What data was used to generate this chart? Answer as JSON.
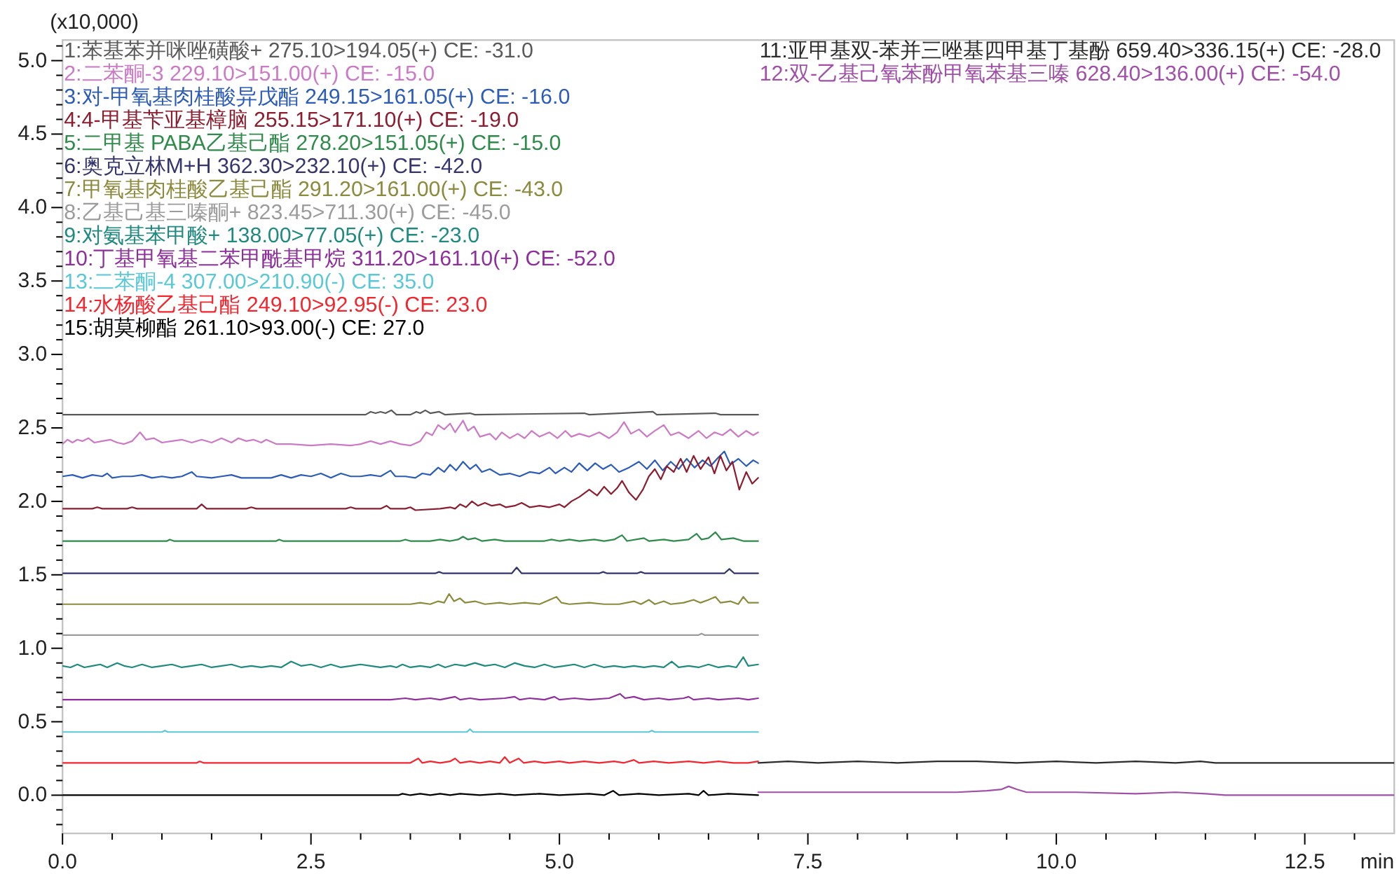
{
  "chart_data": {
    "type": "line",
    "ylabel": "(x10,000)",
    "xlabel": "min",
    "legend": "top left",
    "xlim": [
      0,
      13.4
    ],
    "ylim": [
      -0.26,
      5.14
    ],
    "xticks": [
      {
        "value": 0,
        "label": "0.0"
      },
      {
        "value": 0.5,
        "label": null
      },
      {
        "value": 1,
        "label": null
      },
      {
        "value": 1.5,
        "label": null
      },
      {
        "value": 2,
        "label": null
      },
      {
        "value": 2.5,
        "label": "2.5"
      },
      {
        "value": 3,
        "label": null
      },
      {
        "value": 3.5,
        "label": null
      },
      {
        "value": 4,
        "label": null
      },
      {
        "value": 4.5,
        "label": null
      },
      {
        "value": 5,
        "label": "5.0"
      },
      {
        "value": 5.5,
        "label": null
      },
      {
        "value": 6,
        "label": null
      },
      {
        "value": 6.5,
        "label": null
      },
      {
        "value": 7,
        "label": null
      },
      {
        "value": 7.5,
        "label": "7.5"
      },
      {
        "value": 8,
        "label": null
      },
      {
        "value": 8.5,
        "label": null
      },
      {
        "value": 9,
        "label": null
      },
      {
        "value": 9.5,
        "label": null
      },
      {
        "value": 10,
        "label": "10.0"
      },
      {
        "value": 10.5,
        "label": null
      },
      {
        "value": 11,
        "label": null
      },
      {
        "value": 11.5,
        "label": null
      },
      {
        "value": 12,
        "label": null
      },
      {
        "value": 12.5,
        "label": "12.5"
      },
      {
        "value": 13,
        "label": null
      }
    ],
    "yticks": [
      {
        "value": -0.2,
        "label": null
      },
      {
        "value": -0.1,
        "label": null
      },
      {
        "value": 0,
        "label": "0.0"
      },
      {
        "value": 0.1,
        "label": null
      },
      {
        "value": 0.2,
        "label": null
      },
      {
        "value": 0.3,
        "label": null
      },
      {
        "value": 0.4,
        "label": null
      },
      {
        "value": 0.5,
        "label": "0.5"
      },
      {
        "value": 0.6,
        "label": null
      },
      {
        "value": 0.7,
        "label": null
      },
      {
        "value": 0.8,
        "label": null
      },
      {
        "value": 0.9,
        "label": null
      },
      {
        "value": 1,
        "label": "1.0"
      },
      {
        "value": 1.1,
        "label": null
      },
      {
        "value": 1.2,
        "label": null
      },
      {
        "value": 1.3,
        "label": null
      },
      {
        "value": 1.4,
        "label": null
      },
      {
        "value": 1.5,
        "label": "1.5"
      },
      {
        "value": 1.6,
        "label": null
      },
      {
        "value": 1.7,
        "label": null
      },
      {
        "value": 1.8,
        "label": null
      },
      {
        "value": 1.9,
        "label": null
      },
      {
        "value": 2,
        "label": "2.0"
      },
      {
        "value": 2.1,
        "label": null
      },
      {
        "value": 2.2,
        "label": null
      },
      {
        "value": 2.3,
        "label": null
      },
      {
        "value": 2.4,
        "label": null
      },
      {
        "value": 2.5,
        "label": "2.5"
      },
      {
        "value": 2.6,
        "label": null
      },
      {
        "value": 2.7,
        "label": null
      },
      {
        "value": 2.8,
        "label": null
      },
      {
        "value": 2.9,
        "label": null
      },
      {
        "value": 3,
        "label": "3.0"
      },
      {
        "value": 3.1,
        "label": null
      },
      {
        "value": 3.2,
        "label": null
      },
      {
        "value": 3.3,
        "label": null
      },
      {
        "value": 3.4,
        "label": null
      },
      {
        "value": 3.5,
        "label": "3.5"
      },
      {
        "value": 3.6,
        "label": null
      },
      {
        "value": 3.7,
        "label": null
      },
      {
        "value": 3.8,
        "label": null
      },
      {
        "value": 3.9,
        "label": null
      },
      {
        "value": 4,
        "label": "4.0"
      },
      {
        "value": 4.1,
        "label": null
      },
      {
        "value": 4.2,
        "label": null
      },
      {
        "value": 4.3,
        "label": null
      },
      {
        "value": 4.4,
        "label": null
      },
      {
        "value": 4.5,
        "label": "4.5"
      },
      {
        "value": 4.6,
        "label": null
      },
      {
        "value": 4.7,
        "label": null
      },
      {
        "value": 4.8,
        "label": null
      },
      {
        "value": 4.9,
        "label": null
      },
      {
        "value": 5,
        "label": "5.0"
      },
      {
        "value": 5.1,
        "label": null
      }
    ],
    "series": [
      {
        "name": "1:苯基苯并咪唑磺酸+ 275.10>194.05(+) CE: -31.0",
        "color": "#5a5a5a",
        "x": [
          0,
          3.05,
          3.1,
          3.15,
          3.2,
          3.25,
          3.31,
          3.36,
          3.5,
          3.56,
          3.6,
          3.65,
          3.7,
          3.79,
          3.85,
          4.1,
          4.15,
          5.25,
          5.3,
          5.94,
          5.98,
          6.57,
          6.62,
          7.0
        ],
        "values": [
          2.59,
          2.59,
          2.61,
          2.6,
          2.61,
          2.6,
          2.62,
          2.59,
          2.59,
          2.61,
          2.6,
          2.62,
          2.6,
          2.61,
          2.59,
          2.6,
          2.59,
          2.6,
          2.59,
          2.61,
          2.59,
          2.6,
          2.59,
          2.59
        ]
      },
      {
        "name": "2:二苯酮-3 229.10>151.00(+) CE: -15.0",
        "color": "#cc7ac6",
        "x": [
          0,
          0.05,
          0.1,
          0.15,
          0.2,
          0.26,
          0.32,
          0.4,
          0.48,
          0.55,
          0.62,
          0.7,
          0.78,
          0.84,
          0.92,
          1.0,
          1.1,
          1.2,
          1.3,
          1.4,
          1.5,
          1.6,
          1.7,
          1.77,
          1.85,
          1.92,
          2.0,
          2.05,
          2.15,
          2.3,
          2.5,
          2.7,
          2.9,
          3.0,
          3.1,
          3.2,
          3.3,
          3.4,
          3.5,
          3.6,
          3.66,
          3.72,
          3.78,
          3.84,
          3.9,
          3.95,
          4.03,
          4.08,
          4.14,
          4.2,
          4.3,
          4.36,
          4.42,
          4.5,
          4.58,
          4.65,
          4.72,
          4.8,
          4.9,
          4.98,
          5.06,
          5.12,
          5.2,
          5.3,
          5.4,
          5.5,
          5.58,
          5.65,
          5.72,
          5.8,
          5.88,
          5.96,
          6.05,
          6.12,
          6.2,
          6.3,
          6.4,
          6.48,
          6.56,
          6.64,
          6.72,
          6.8,
          6.88,
          6.95,
          7.0
        ],
        "values": [
          2.39,
          2.42,
          2.4,
          2.42,
          2.41,
          2.43,
          2.4,
          2.41,
          2.42,
          2.4,
          2.39,
          2.41,
          2.47,
          2.42,
          2.43,
          2.4,
          2.41,
          2.42,
          2.4,
          2.42,
          2.4,
          2.43,
          2.4,
          2.43,
          2.41,
          2.42,
          2.4,
          2.42,
          2.39,
          2.39,
          2.38,
          2.39,
          2.38,
          2.39,
          2.41,
          2.39,
          2.41,
          2.39,
          2.38,
          2.41,
          2.47,
          2.45,
          2.52,
          2.49,
          2.53,
          2.47,
          2.55,
          2.48,
          2.51,
          2.44,
          2.46,
          2.42,
          2.47,
          2.43,
          2.46,
          2.43,
          2.48,
          2.44,
          2.47,
          2.43,
          2.48,
          2.44,
          2.46,
          2.44,
          2.47,
          2.43,
          2.47,
          2.54,
          2.46,
          2.49,
          2.44,
          2.48,
          2.52,
          2.45,
          2.47,
          2.43,
          2.48,
          2.43,
          2.47,
          2.45,
          2.49,
          2.44,
          2.48,
          2.45,
          2.47
        ]
      },
      {
        "name": "3:对-甲氧基肉桂酸异戊酯 249.15>161.05(+) CE: -16.0",
        "color": "#2b5cb8",
        "x": [
          0,
          0.1,
          0.2,
          0.3,
          0.4,
          0.45,
          0.5,
          0.6,
          0.7,
          0.8,
          0.9,
          1.0,
          1.1,
          1.2,
          1.3,
          1.35,
          1.5,
          1.6,
          1.7,
          1.8,
          2.0,
          2.1,
          2.2,
          2.3,
          2.4,
          2.5,
          2.6,
          2.7,
          2.8,
          2.9,
          3.0,
          3.1,
          3.2,
          3.3,
          3.35,
          3.45,
          3.55,
          3.62,
          3.7,
          3.78,
          3.84,
          3.9,
          3.96,
          4.03,
          4.1,
          4.16,
          4.22,
          4.3,
          4.4,
          4.5,
          4.6,
          4.7,
          4.8,
          4.9,
          4.96,
          5.05,
          5.12,
          5.2,
          5.28,
          5.36,
          5.44,
          5.52,
          5.6,
          5.7,
          5.8,
          5.88,
          5.96,
          6.04,
          6.12,
          6.2,
          6.28,
          6.36,
          6.44,
          6.52,
          6.6,
          6.66,
          6.72,
          6.8,
          6.88,
          6.95,
          7.0
        ],
        "values": [
          2.17,
          2.18,
          2.16,
          2.18,
          2.17,
          2.19,
          2.16,
          2.17,
          2.17,
          2.18,
          2.16,
          2.17,
          2.16,
          2.17,
          2.2,
          2.17,
          2.16,
          2.17,
          2.18,
          2.16,
          2.16,
          2.16,
          2.18,
          2.16,
          2.18,
          2.17,
          2.19,
          2.16,
          2.19,
          2.17,
          2.17,
          2.18,
          2.17,
          2.21,
          2.17,
          2.17,
          2.16,
          2.19,
          2.18,
          2.23,
          2.2,
          2.25,
          2.21,
          2.27,
          2.22,
          2.25,
          2.2,
          2.22,
          2.18,
          2.19,
          2.17,
          2.2,
          2.19,
          2.23,
          2.19,
          2.23,
          2.2,
          2.26,
          2.21,
          2.26,
          2.22,
          2.25,
          2.2,
          2.23,
          2.27,
          2.22,
          2.28,
          2.21,
          2.27,
          2.22,
          2.29,
          2.23,
          2.28,
          2.24,
          2.3,
          2.34,
          2.25,
          2.29,
          2.24,
          2.28,
          2.26
        ]
      },
      {
        "name": "4:4-甲基苄亚基樟脑 255.15>171.10(+) CE: -19.0",
        "color": "#8c1d2e",
        "x": [
          0,
          0.3,
          0.35,
          0.4,
          0.65,
          0.7,
          0.75,
          1.35,
          1.4,
          1.45,
          1.85,
          1.9,
          1.95,
          2.85,
          2.9,
          2.95,
          3.2,
          3.26,
          3.3,
          3.45,
          3.5,
          3.55,
          3.8,
          3.9,
          3.95,
          4.0,
          4.06,
          4.12,
          4.18,
          4.25,
          4.32,
          4.4,
          4.46,
          4.55,
          4.62,
          4.7,
          4.8,
          4.9,
          5.0,
          5.05,
          5.12,
          5.2,
          5.3,
          5.38,
          5.45,
          5.52,
          5.58,
          5.63,
          5.7,
          5.77,
          5.84,
          5.9,
          5.96,
          6.02,
          6.08,
          6.15,
          6.22,
          6.28,
          6.35,
          6.42,
          6.5,
          6.56,
          6.62,
          6.68,
          6.74,
          6.81,
          6.88,
          6.94,
          7.0
        ],
        "values": [
          1.95,
          1.95,
          1.96,
          1.95,
          1.95,
          1.96,
          1.95,
          1.95,
          1.98,
          1.95,
          1.95,
          1.96,
          1.95,
          1.95,
          1.96,
          1.95,
          1.95,
          1.97,
          1.95,
          1.95,
          1.96,
          1.94,
          1.95,
          1.96,
          1.95,
          1.98,
          1.96,
          2.0,
          1.97,
          1.99,
          1.97,
          1.98,
          1.96,
          1.97,
          1.99,
          1.96,
          1.97,
          1.96,
          1.98,
          1.96,
          2.0,
          2.03,
          2.08,
          2.04,
          2.1,
          2.05,
          2.09,
          2.14,
          2.06,
          2.01,
          2.08,
          2.17,
          2.22,
          2.15,
          2.24,
          2.2,
          2.29,
          2.2,
          2.31,
          2.22,
          2.3,
          2.19,
          2.31,
          2.21,
          2.27,
          2.08,
          2.2,
          2.12,
          2.16
        ]
      },
      {
        "name": "5:二甲基 PABA乙基己酯 278.20>151.05(+) CE: -15.0",
        "color": "#2e8b4a",
        "x": [
          0,
          1.05,
          1.08,
          1.12,
          2.15,
          2.18,
          2.22,
          3.4,
          3.45,
          3.5,
          3.7,
          3.8,
          3.9,
          3.98,
          4.03,
          4.08,
          4.15,
          4.22,
          4.35,
          4.45,
          4.85,
          4.92,
          5.0,
          5.1,
          5.2,
          5.35,
          5.45,
          5.55,
          5.63,
          5.68,
          5.85,
          5.9,
          6.05,
          6.15,
          6.3,
          6.38,
          6.43,
          6.5,
          6.57,
          6.63,
          6.75,
          6.85,
          7.0
        ],
        "values": [
          1.73,
          1.73,
          1.74,
          1.73,
          1.73,
          1.74,
          1.73,
          1.73,
          1.74,
          1.73,
          1.73,
          1.74,
          1.73,
          1.74,
          1.76,
          1.74,
          1.75,
          1.73,
          1.74,
          1.73,
          1.73,
          1.74,
          1.73,
          1.74,
          1.73,
          1.74,
          1.73,
          1.74,
          1.77,
          1.73,
          1.75,
          1.73,
          1.74,
          1.73,
          1.74,
          1.78,
          1.74,
          1.75,
          1.79,
          1.74,
          1.75,
          1.73,
          1.73
        ]
      },
      {
        "name": "6:奥克立林M+H 362.30>232.10(+) CE: -42.0",
        "color": "#35356e",
        "x": [
          0,
          3.75,
          3.79,
          3.83,
          4.52,
          4.57,
          4.62,
          5.4,
          5.44,
          5.48,
          5.78,
          5.82,
          5.86,
          6.66,
          6.71,
          6.76,
          7.0
        ],
        "values": [
          1.51,
          1.51,
          1.52,
          1.51,
          1.51,
          1.55,
          1.51,
          1.51,
          1.52,
          1.51,
          1.51,
          1.52,
          1.51,
          1.51,
          1.54,
          1.51,
          1.51
        ]
      },
      {
        "name": "7:甲氧基肉桂酸乙基己酯 291.20>161.00(+) CE: -43.0",
        "color": "#8c8a3c",
        "x": [
          0,
          3.5,
          3.6,
          3.7,
          3.78,
          3.84,
          3.89,
          3.94,
          4.0,
          4.05,
          4.15,
          4.25,
          4.4,
          4.5,
          4.65,
          4.8,
          4.97,
          5.02,
          5.1,
          5.3,
          5.45,
          5.6,
          5.75,
          5.82,
          5.9,
          5.96,
          6.05,
          6.12,
          6.25,
          6.35,
          6.42,
          6.5,
          6.57,
          6.62,
          6.72,
          6.8,
          6.85,
          6.9,
          7.0
        ],
        "values": [
          1.3,
          1.3,
          1.31,
          1.3,
          1.32,
          1.31,
          1.37,
          1.32,
          1.34,
          1.31,
          1.32,
          1.3,
          1.31,
          1.3,
          1.31,
          1.3,
          1.35,
          1.31,
          1.3,
          1.31,
          1.3,
          1.3,
          1.32,
          1.3,
          1.33,
          1.3,
          1.32,
          1.3,
          1.31,
          1.33,
          1.31,
          1.33,
          1.35,
          1.31,
          1.32,
          1.3,
          1.35,
          1.31,
          1.31
        ]
      },
      {
        "name": "8:乙基己基三嗪酮+ 823.45>711.30(+) CE: -45.0",
        "color": "#9c9c9c",
        "x": [
          0,
          6.4,
          6.43,
          6.46,
          7.0
        ],
        "values": [
          1.09,
          1.09,
          1.1,
          1.09,
          1.09
        ]
      },
      {
        "name": "9:对氨基苯甲酸+ 138.00>77.05(+) CE: -23.0",
        "color": "#1f8a80",
        "x": [
          0,
          0.08,
          0.15,
          0.22,
          0.3,
          0.38,
          0.45,
          0.55,
          0.62,
          0.7,
          0.8,
          0.9,
          1.0,
          1.1,
          1.2,
          1.3,
          1.4,
          1.5,
          1.6,
          1.7,
          1.8,
          1.9,
          2.0,
          2.1,
          2.2,
          2.3,
          2.4,
          2.5,
          2.6,
          2.7,
          2.8,
          2.9,
          3.0,
          3.1,
          3.2,
          3.3,
          3.36,
          3.42,
          3.5,
          3.6,
          3.7,
          3.78,
          3.85,
          3.95,
          4.05,
          4.15,
          4.25,
          4.35,
          4.45,
          4.55,
          4.65,
          4.75,
          4.85,
          4.95,
          5.05,
          5.15,
          5.25,
          5.35,
          5.45,
          5.55,
          5.65,
          5.75,
          5.85,
          5.95,
          6.05,
          6.13,
          6.2,
          6.3,
          6.4,
          6.5,
          6.6,
          6.7,
          6.78,
          6.85,
          6.9,
          7.0
        ],
        "values": [
          0.88,
          0.87,
          0.89,
          0.87,
          0.88,
          0.89,
          0.87,
          0.9,
          0.88,
          0.87,
          0.89,
          0.87,
          0.88,
          0.89,
          0.87,
          0.88,
          0.89,
          0.87,
          0.88,
          0.89,
          0.87,
          0.88,
          0.87,
          0.88,
          0.87,
          0.91,
          0.88,
          0.89,
          0.87,
          0.89,
          0.87,
          0.88,
          0.89,
          0.88,
          0.87,
          0.88,
          0.87,
          0.89,
          0.87,
          0.88,
          0.87,
          0.89,
          0.87,
          0.89,
          0.88,
          0.9,
          0.88,
          0.89,
          0.87,
          0.9,
          0.88,
          0.87,
          0.89,
          0.87,
          0.88,
          0.89,
          0.87,
          0.89,
          0.87,
          0.88,
          0.87,
          0.88,
          0.87,
          0.88,
          0.87,
          0.91,
          0.87,
          0.88,
          0.87,
          0.89,
          0.87,
          0.88,
          0.87,
          0.94,
          0.88,
          0.89
        ]
      },
      {
        "name": "10:丁基甲氧基二苯甲酰基甲烷 311.20>161.10(+) CE: -52.0",
        "color": "#8e2f9c",
        "x": [
          0,
          3.3,
          3.45,
          3.55,
          3.7,
          3.8,
          3.95,
          4.0,
          4.1,
          4.2,
          4.45,
          4.55,
          4.6,
          4.7,
          4.85,
          4.95,
          5.0,
          5.15,
          5.3,
          5.5,
          5.61,
          5.66,
          5.75,
          5.85,
          6.0,
          6.1,
          6.25,
          6.3,
          6.35,
          6.5,
          6.6,
          6.8,
          6.9,
          7.0
        ],
        "values": [
          0.65,
          0.65,
          0.66,
          0.65,
          0.66,
          0.65,
          0.67,
          0.65,
          0.66,
          0.65,
          0.66,
          0.67,
          0.65,
          0.66,
          0.65,
          0.67,
          0.65,
          0.66,
          0.65,
          0.66,
          0.69,
          0.66,
          0.67,
          0.65,
          0.66,
          0.65,
          0.66,
          0.67,
          0.65,
          0.66,
          0.65,
          0.66,
          0.65,
          0.66
        ]
      },
      {
        "name": "11:亚甲基双-苯并三唑基四甲基丁基酚 659.40>336.15(+) CE: -28.0",
        "color": "#2c2c2c",
        "x": [
          7.0,
          7.3,
          7.6,
          8.0,
          8.4,
          8.8,
          9.2,
          9.6,
          10.0,
          10.4,
          10.8,
          11.2,
          11.45,
          11.6,
          13.4
        ],
        "values": [
          0.22,
          0.23,
          0.22,
          0.23,
          0.22,
          0.23,
          0.23,
          0.22,
          0.23,
          0.22,
          0.23,
          0.22,
          0.23,
          0.22,
          0.22
        ]
      },
      {
        "name": "12:双-乙基己氧苯酚甲氧苯基三嗪 628.40>136.00(+) CE: -54.0",
        "color": "#a050a8",
        "x": [
          7.0,
          7.5,
          8.0,
          8.5,
          9.0,
          9.3,
          9.45,
          9.52,
          9.6,
          9.7,
          10.2,
          10.8,
          11.2,
          11.5,
          11.7,
          13.4
        ],
        "values": [
          0.02,
          0.02,
          0.02,
          0.02,
          0.02,
          0.03,
          0.04,
          0.06,
          0.04,
          0.02,
          0.02,
          0.01,
          0.02,
          0.01,
          0.0,
          0.0
        ]
      },
      {
        "name": "13:二苯酮-4 307.00>210.90(-) CE: 35.0",
        "color": "#5bc8d8",
        "x": [
          0,
          1.0,
          1.03,
          1.06,
          4.07,
          4.1,
          4.13,
          5.9,
          5.93,
          5.96,
          7.0
        ],
        "values": [
          0.43,
          0.43,
          0.44,
          0.43,
          0.43,
          0.45,
          0.43,
          0.43,
          0.44,
          0.43,
          0.43
        ]
      },
      {
        "name": "14:水杨酸乙基己酯 249.10>92.95(-) CE: 23.0",
        "color": "#f2262e",
        "x": [
          0,
          1.35,
          1.38,
          1.42,
          3.5,
          3.58,
          3.62,
          3.7,
          3.8,
          3.9,
          3.95,
          4.0,
          4.1,
          4.2,
          4.3,
          4.4,
          4.45,
          4.5,
          4.59,
          4.64,
          4.75,
          4.85,
          5.0,
          5.1,
          5.25,
          5.4,
          5.55,
          5.65,
          5.75,
          5.8,
          5.95,
          6.1,
          6.3,
          6.45,
          6.6,
          6.75,
          6.9,
          7.0
        ],
        "values": [
          0.22,
          0.22,
          0.23,
          0.22,
          0.22,
          0.25,
          0.22,
          0.23,
          0.22,
          0.23,
          0.25,
          0.22,
          0.23,
          0.22,
          0.23,
          0.22,
          0.26,
          0.22,
          0.25,
          0.22,
          0.23,
          0.22,
          0.23,
          0.22,
          0.23,
          0.22,
          0.23,
          0.22,
          0.24,
          0.22,
          0.23,
          0.22,
          0.23,
          0.22,
          0.23,
          0.22,
          0.22,
          0.23
        ]
      },
      {
        "name": "15:胡莫柳酯 261.10>93.00(-) CE: 27.0",
        "color": "#000000",
        "x": [
          0,
          3.38,
          3.42,
          3.5,
          3.6,
          3.7,
          3.8,
          3.9,
          4.0,
          4.2,
          4.4,
          4.55,
          4.8,
          5.0,
          5.3,
          5.45,
          5.54,
          5.6,
          5.8,
          6.0,
          6.3,
          6.4,
          6.45,
          6.5,
          6.7,
          7.0
        ],
        "values": [
          0.0,
          0.0,
          0.01,
          0.0,
          0.01,
          0.0,
          0.01,
          0.0,
          0.01,
          0.0,
          0.01,
          0.0,
          0.01,
          0.0,
          0.01,
          0.0,
          0.03,
          0.0,
          0.01,
          0.0,
          0.01,
          0.0,
          0.03,
          0.0,
          0.01,
          0.0
        ]
      }
    ]
  }
}
